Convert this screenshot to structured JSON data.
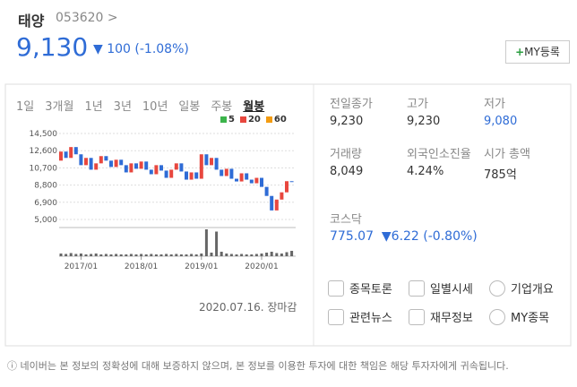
{
  "header": {
    "name": "태양",
    "code": "053620",
    "price": "9,130",
    "change": "100",
    "change_pct": "(-1.08%)",
    "my_button": "MY등록"
  },
  "tabs": {
    "items": [
      "1일",
      "3개월",
      "1년",
      "3년",
      "10년",
      "일봉",
      "주봉",
      "월봉"
    ],
    "active": 7
  },
  "chart": {
    "type": "candlestick",
    "legend": [
      {
        "name": "5",
        "color": "#3cb44b"
      },
      {
        "name": "20",
        "color": "#e8473e"
      },
      {
        "name": "60",
        "color": "#f39c12"
      }
    ],
    "up_color": "#e8473e",
    "down_color": "#2f6cd6",
    "ylim": [
      5000,
      14500
    ],
    "yticks": [
      {
        "value": 14500,
        "label": "14,500"
      },
      {
        "value": 12600,
        "label": "12,600"
      },
      {
        "value": 10700,
        "label": "10,700"
      },
      {
        "value": 8800,
        "label": "8,800"
      },
      {
        "value": 6900,
        "label": "6,900"
      },
      {
        "value": 5000,
        "label": "5,000"
      }
    ],
    "categories": [
      null,
      null,
      null,
      null,
      "2017/01",
      null,
      null,
      null,
      null,
      null,
      null,
      null,
      null,
      null,
      null,
      null,
      "2018/01",
      null,
      null,
      null,
      null,
      null,
      null,
      null,
      null,
      null,
      null,
      null,
      "2019/01",
      null,
      null,
      null,
      null,
      null,
      null,
      null,
      null,
      null,
      null,
      null,
      "2020/01",
      null,
      null,
      null,
      null,
      null,
      null
    ],
    "open": [
      11500,
      12500,
      11800,
      13000,
      12200,
      11000,
      11800,
      10500,
      11200,
      12000,
      11500,
      10800,
      11600,
      11000,
      10200,
      11200,
      10600,
      11400,
      10500,
      10000,
      11000,
      10400,
      9600,
      10500,
      11200,
      10300,
      9400,
      10200,
      9500,
      12200,
      11000,
      11800,
      10500,
      9800,
      10600,
      9500,
      9200,
      10100,
      9400,
      9000,
      9600,
      8600,
      7600,
      6000,
      7200,
      8000,
      9230
    ],
    "close": [
      12500,
      11800,
      13000,
      12200,
      11000,
      11800,
      10500,
      11200,
      12000,
      11500,
      10800,
      11600,
      11000,
      10200,
      11200,
      10600,
      11400,
      10500,
      10000,
      11000,
      10400,
      9600,
      10500,
      11200,
      10300,
      9400,
      10200,
      9500,
      12200,
      11000,
      11800,
      10500,
      9800,
      10600,
      9500,
      9200,
      10100,
      9400,
      9000,
      9600,
      8600,
      7600,
      6000,
      7200,
      8000,
      9230,
      9130
    ],
    "volume": [
      6,
      5,
      7,
      5,
      6,
      4,
      5,
      6,
      4,
      5,
      4,
      5,
      4,
      4,
      5,
      4,
      5,
      4,
      5,
      4,
      4,
      5,
      4,
      5,
      4,
      4,
      5,
      4,
      6,
      60,
      8,
      55,
      10,
      6,
      5,
      4,
      5,
      4,
      4,
      5,
      6,
      8,
      10,
      7,
      6,
      9,
      12
    ]
  },
  "date": "2020.07.16. 장마감",
  "stats": [
    {
      "label": "전일종가",
      "value": "9,230"
    },
    {
      "label": "고가",
      "value": "9,230"
    },
    {
      "label": "저가",
      "value": "9,080"
    },
    {
      "label": "거래량",
      "value": "8,049"
    },
    {
      "label": "외국인소진율",
      "value": "4.24%"
    },
    {
      "label": "시가 총액",
      "value": "785억"
    }
  ],
  "index": {
    "name": "코스닥",
    "value": "775.07",
    "change": "6.22",
    "change_pct": "(-0.80%)"
  },
  "links": [
    "종목토론",
    "일별시세",
    "기업개요",
    "관련뉴스",
    "재무정보",
    "MY종목"
  ],
  "footer": "네이버는 본 정보의 정확성에 대해 보증하지 않으며, 본 정보를 이용한 투자에 대한 책임은 해당 투자자에게 귀속됩니다."
}
